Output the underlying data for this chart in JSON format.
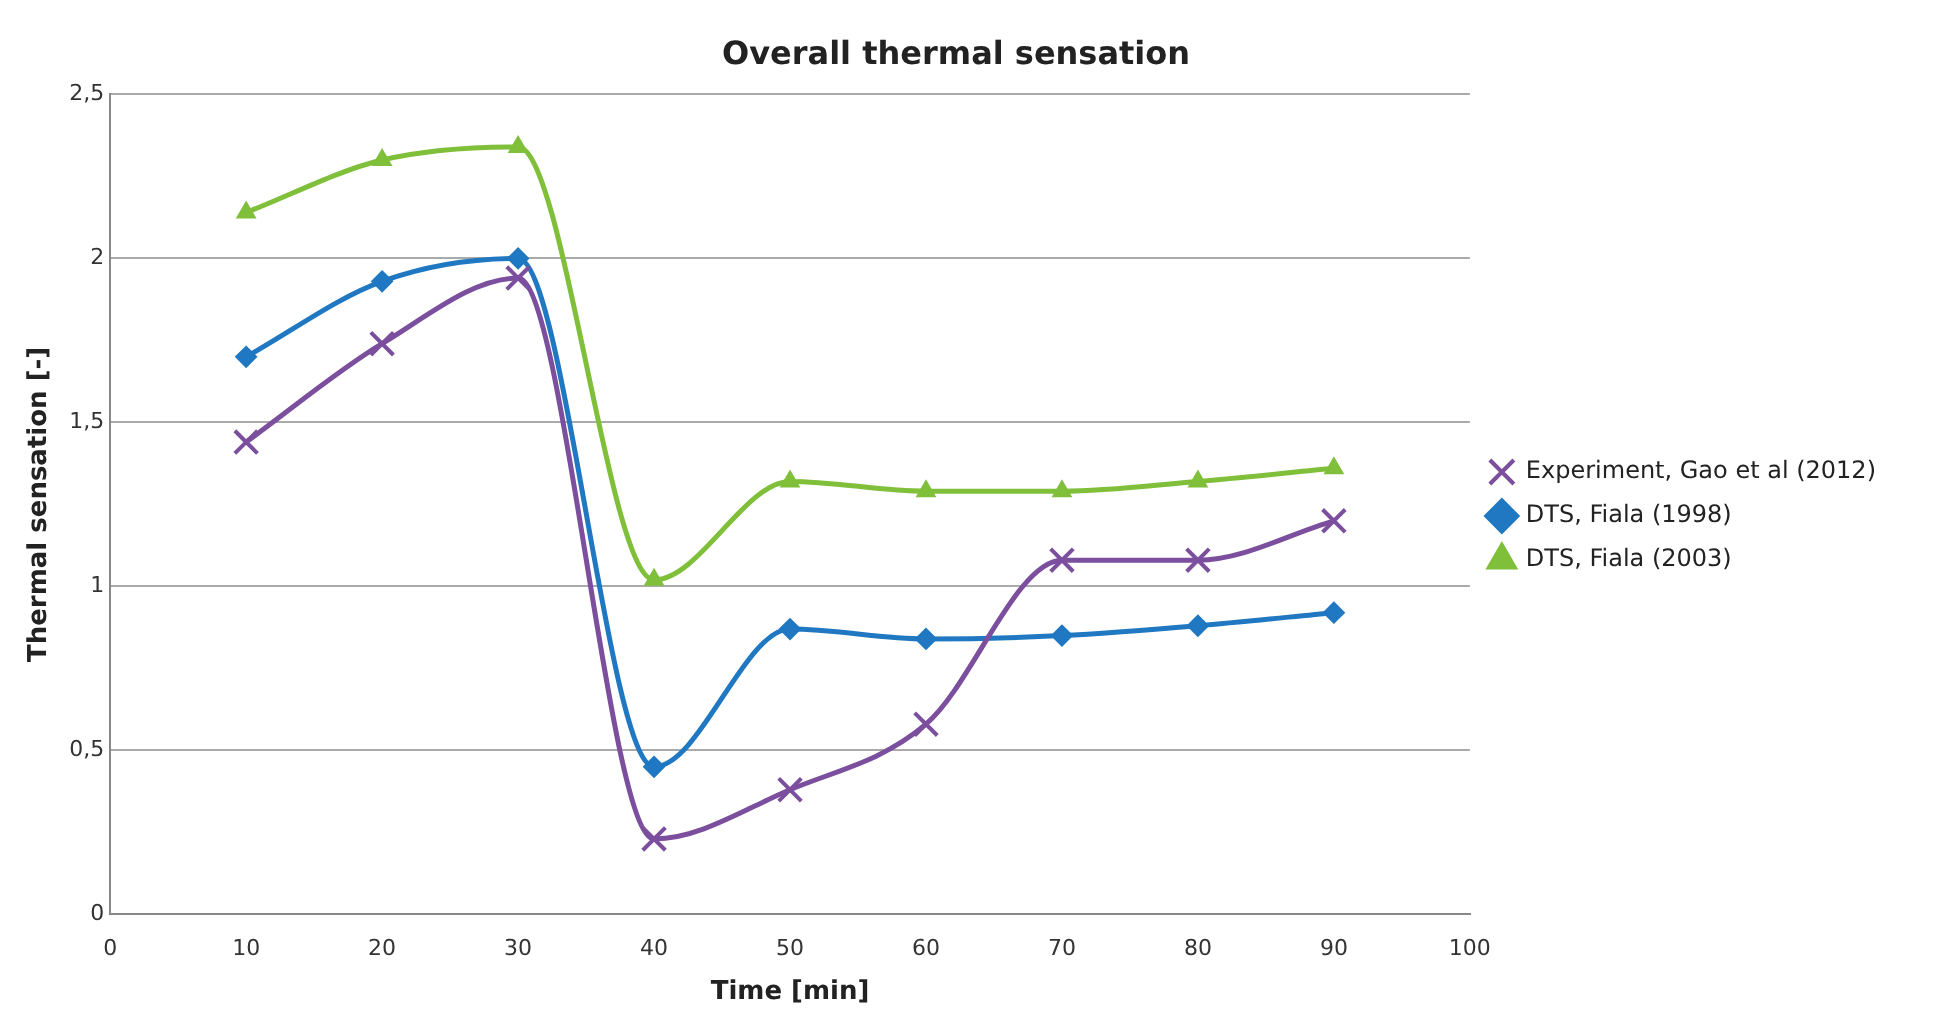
{
  "chart_data": {
    "type": "line",
    "title": "Overall thermal sensation",
    "xlabel": "Time [min]",
    "ylabel": "Thermal sensation [-]",
    "x": [
      10,
      20,
      30,
      40,
      50,
      60,
      70,
      80,
      90
    ],
    "series": [
      {
        "name": "Experiment, Gao et al (2012)",
        "color": "#7b4f9d",
        "marker": "cross",
        "values": [
          1.44,
          1.74,
          1.94,
          0.23,
          0.38,
          0.58,
          1.08,
          1.08,
          1.2
        ]
      },
      {
        "name": "DTS, Fiala (1998)",
        "color": "#1f78c1",
        "marker": "diamond",
        "values": [
          1.7,
          1.93,
          2.0,
          0.45,
          0.87,
          0.84,
          0.85,
          0.88,
          0.92
        ]
      },
      {
        "name": "DTS, Fiala (2003)",
        "color": "#7fbf3a",
        "marker": "triangle",
        "values": [
          2.14,
          2.3,
          2.34,
          1.02,
          1.32,
          1.29,
          1.29,
          1.32,
          1.36
        ]
      }
    ],
    "xlim": [
      0,
      100
    ],
    "xticks": [
      0,
      10,
      20,
      30,
      40,
      50,
      60,
      70,
      80,
      90,
      100
    ],
    "ylim": [
      0,
      2.5
    ],
    "yticks": [
      0,
      {
        "value": 0.5,
        "label": "0,5"
      },
      1,
      {
        "value": 1.5,
        "label": "1,5"
      },
      2,
      {
        "value": 2.5,
        "label": "2,5"
      }
    ],
    "grid": "y",
    "legend": "right"
  }
}
